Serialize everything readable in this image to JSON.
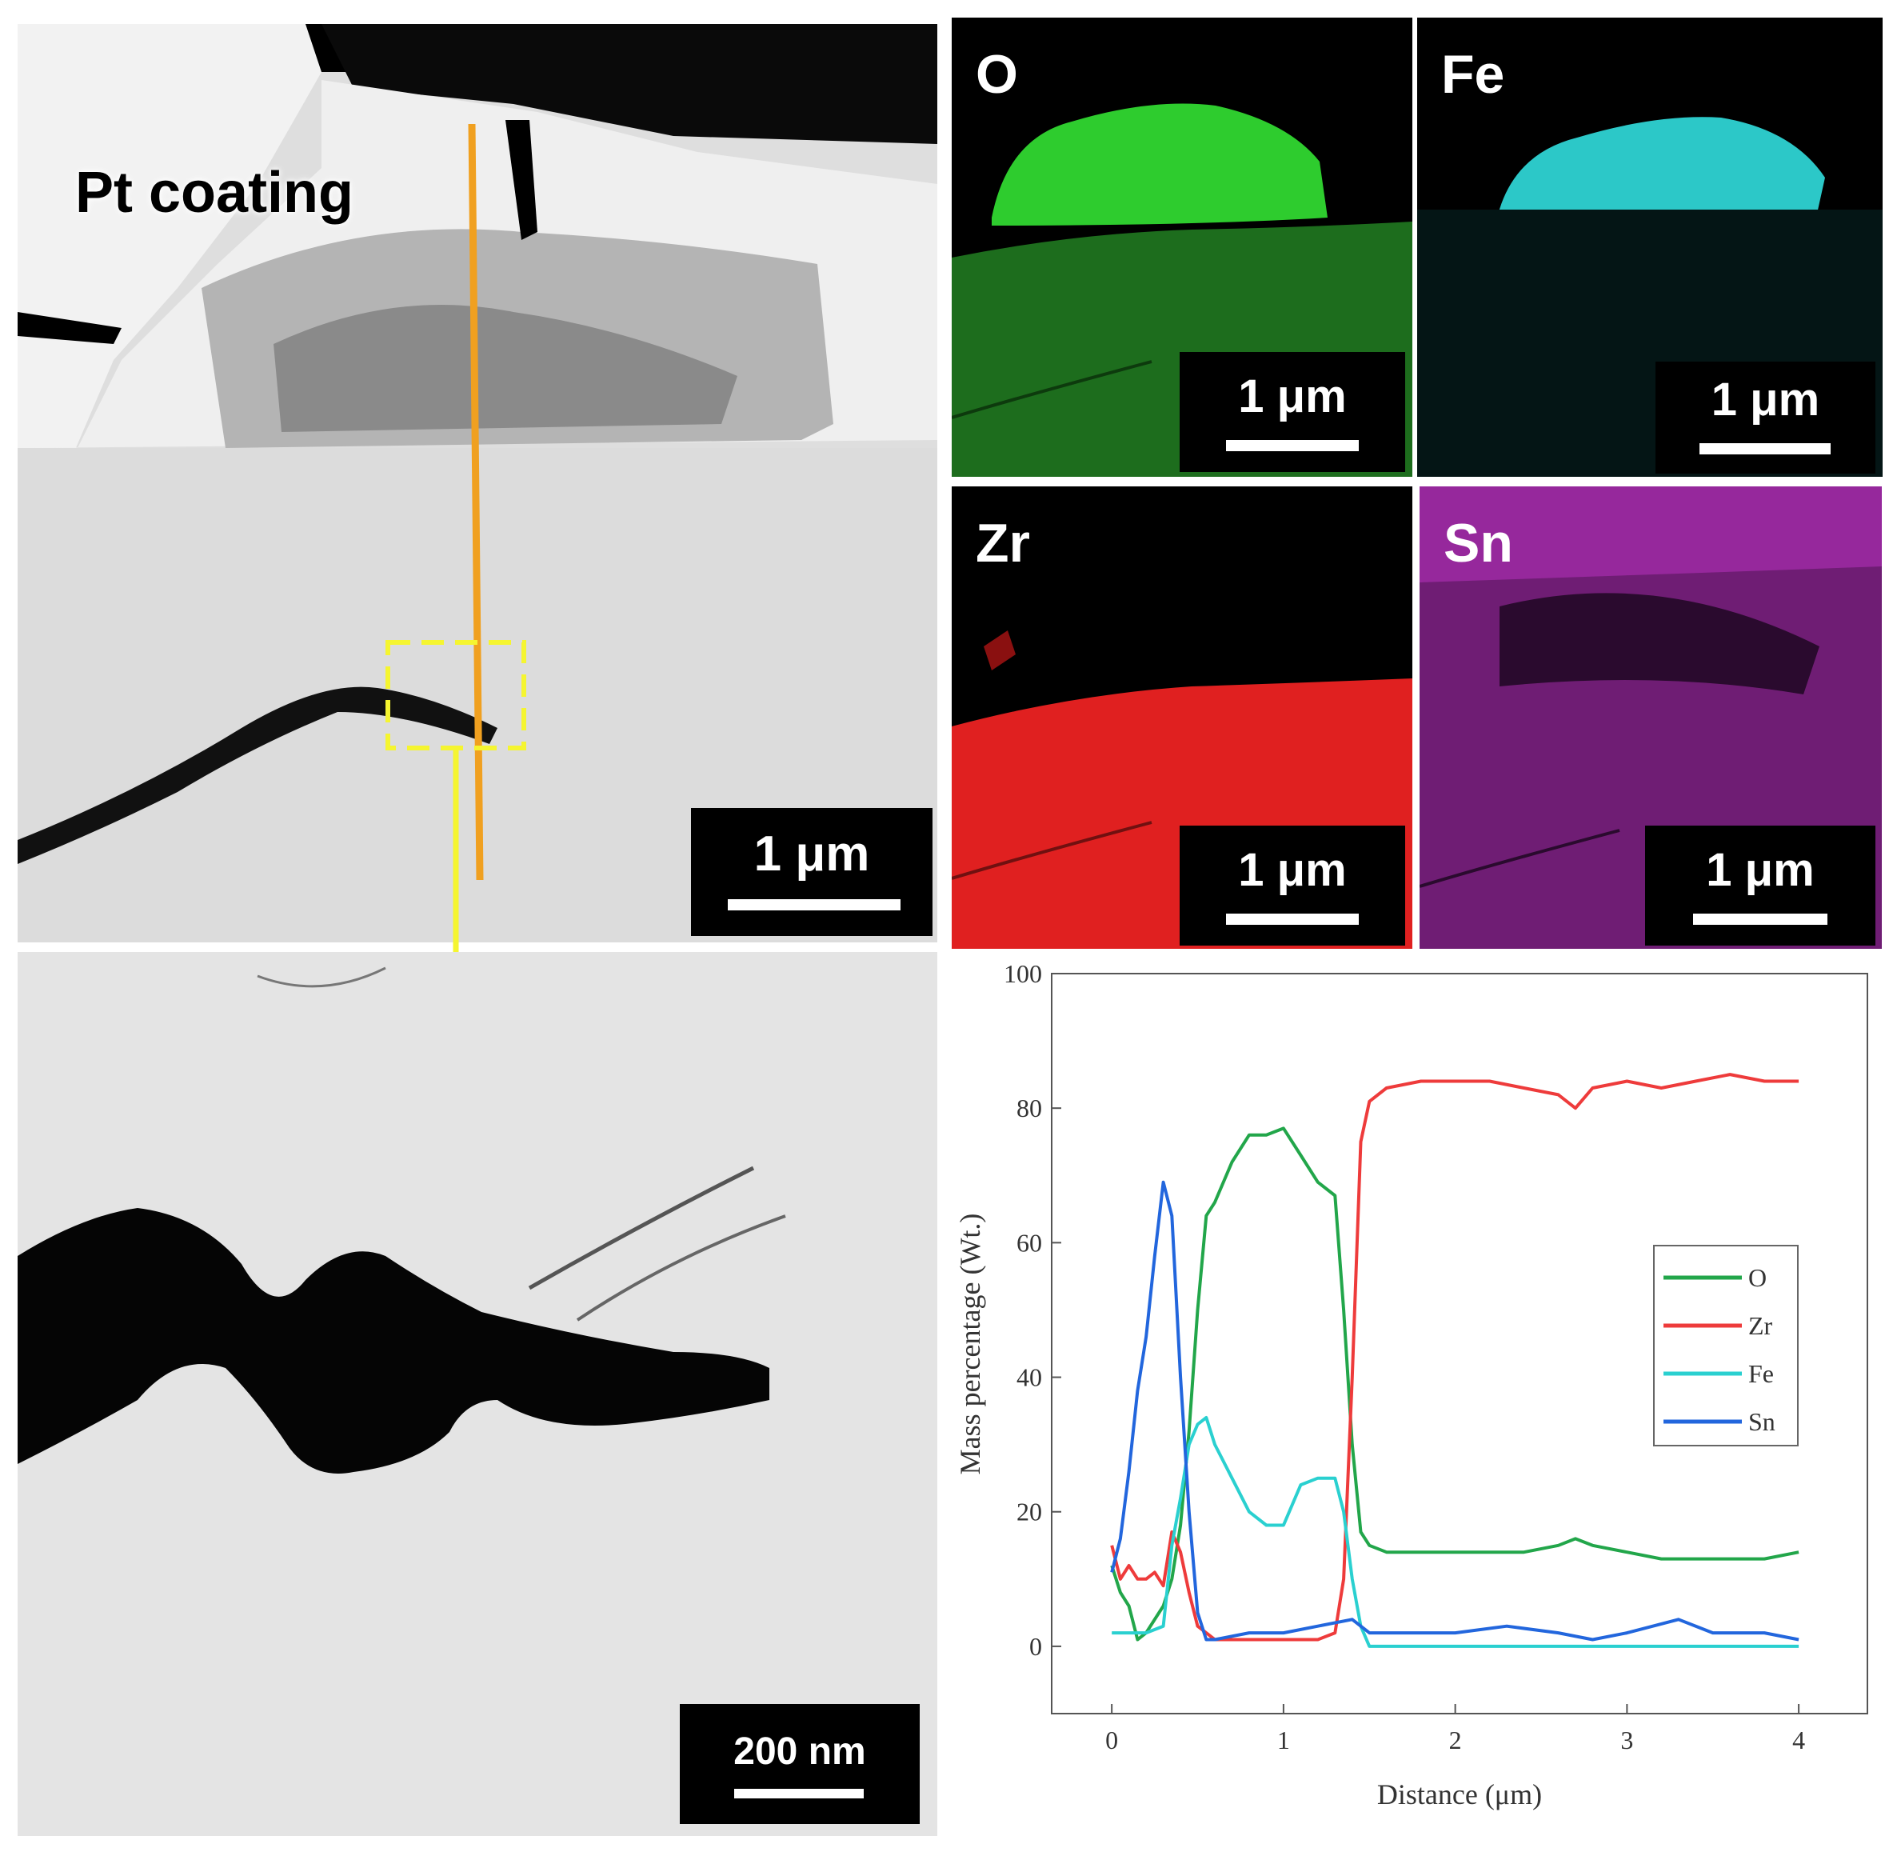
{
  "panels": {
    "sem_overview": {
      "label": "Pt coating",
      "scale": "1 μm"
    },
    "sem_zoom": {
      "scale": "200 nm"
    },
    "eds_maps": [
      {
        "element": "O",
        "scale": "1 μm",
        "color": "#22c022"
      },
      {
        "element": "Fe",
        "scale": "1 μm",
        "color": "#26c6c6"
      },
      {
        "element": "Zr",
        "scale": "1 μm",
        "color": "#e02020"
      },
      {
        "element": "Sn",
        "scale": "1 μm",
        "color": "#b030b8"
      }
    ]
  },
  "chart_data": {
    "type": "line",
    "title": "",
    "xlabel": "Distance (μm)",
    "ylabel": "Mass percentage (Wt.)",
    "xlim": [
      -0.35,
      4.4
    ],
    "ylim": [
      -10,
      100
    ],
    "xticks": [
      0,
      1,
      2,
      3,
      4
    ],
    "yticks": [
      0,
      20,
      40,
      60,
      80,
      100
    ],
    "legend_position": "right",
    "series": [
      {
        "name": "O",
        "color": "#22a64a",
        "x": [
          0,
          0.05,
          0.1,
          0.15,
          0.2,
          0.25,
          0.3,
          0.35,
          0.4,
          0.45,
          0.5,
          0.55,
          0.6,
          0.7,
          0.8,
          0.9,
          1.0,
          1.1,
          1.2,
          1.3,
          1.35,
          1.4,
          1.45,
          1.5,
          1.6,
          1.8,
          2.0,
          2.2,
          2.4,
          2.6,
          2.7,
          2.8,
          3.0,
          3.2,
          3.4,
          3.6,
          3.8,
          4.0
        ],
        "y": [
          12,
          8,
          6,
          1,
          2,
          4,
          6,
          10,
          18,
          32,
          50,
          64,
          66,
          72,
          76,
          76,
          77,
          73,
          69,
          67,
          50,
          30,
          17,
          15,
          14,
          14,
          14,
          14,
          14,
          15,
          16,
          15,
          14,
          13,
          13,
          13,
          13,
          14
        ]
      },
      {
        "name": "Zr",
        "color": "#ee3b3b",
        "x": [
          0,
          0.05,
          0.1,
          0.15,
          0.2,
          0.25,
          0.3,
          0.35,
          0.4,
          0.45,
          0.5,
          0.55,
          0.6,
          0.8,
          1.0,
          1.2,
          1.3,
          1.35,
          1.4,
          1.45,
          1.5,
          1.6,
          1.8,
          2.0,
          2.2,
          2.4,
          2.6,
          2.7,
          2.8,
          3.0,
          3.2,
          3.4,
          3.6,
          3.8,
          4.0
        ],
        "y": [
          15,
          10,
          12,
          10,
          10,
          11,
          9,
          17,
          14,
          8,
          3,
          2,
          1,
          1,
          1,
          1,
          2,
          10,
          40,
          75,
          81,
          83,
          84,
          84,
          84,
          83,
          82,
          80,
          83,
          84,
          83,
          84,
          85,
          84,
          84
        ]
      },
      {
        "name": "Fe",
        "color": "#2ad0d0",
        "x": [
          0,
          0.1,
          0.2,
          0.3,
          0.35,
          0.4,
          0.45,
          0.5,
          0.55,
          0.6,
          0.7,
          0.8,
          0.9,
          1.0,
          1.1,
          1.2,
          1.3,
          1.35,
          1.4,
          1.45,
          1.5,
          2.0,
          3.0,
          4.0
        ],
        "y": [
          2,
          2,
          2,
          3,
          15,
          22,
          30,
          33,
          34,
          30,
          25,
          20,
          18,
          18,
          24,
          25,
          25,
          20,
          10,
          3,
          0,
          0,
          0,
          0
        ]
      },
      {
        "name": "Sn",
        "color": "#2266dd",
        "x": [
          0,
          0.05,
          0.1,
          0.15,
          0.2,
          0.25,
          0.3,
          0.35,
          0.4,
          0.45,
          0.5,
          0.55,
          0.6,
          0.8,
          1.0,
          1.2,
          1.4,
          1.5,
          1.7,
          2.0,
          2.3,
          2.6,
          2.8,
          3.0,
          3.3,
          3.5,
          3.8,
          4.0
        ],
        "y": [
          11,
          16,
          26,
          38,
          46,
          58,
          69,
          64,
          40,
          20,
          5,
          1,
          1,
          2,
          2,
          3,
          4,
          2,
          2,
          2,
          3,
          2,
          1,
          2,
          4,
          2,
          2,
          1
        ]
      }
    ]
  }
}
